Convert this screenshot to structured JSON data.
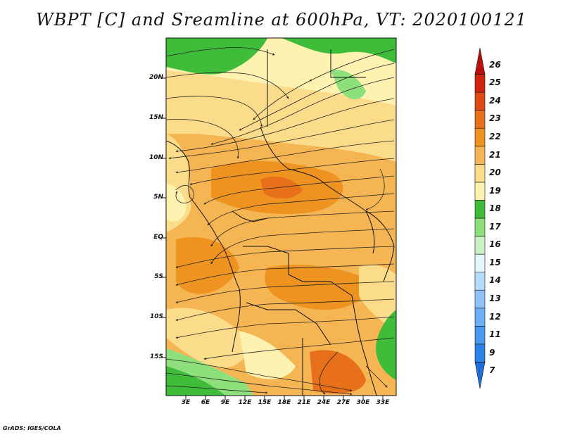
{
  "title": "WBPT [C] and Sreamline at 600hPa, VT: 2020100121",
  "credit": "GrADS: IGES/COLA",
  "lat_labels": [
    "20N",
    "15N",
    "10N",
    "5N",
    "EQ",
    "5S",
    "10S",
    "15S"
  ],
  "lon_labels": [
    "3E",
    "6E",
    "9E",
    "12E",
    "15E",
    "18E",
    "21E",
    "24E",
    "27E",
    "30E",
    "33E"
  ],
  "colorbar": {
    "labels": [
      "7",
      "9",
      "11",
      "12",
      "13",
      "14",
      "15",
      "16",
      "17",
      "18",
      "19",
      "20",
      "21",
      "22",
      "23",
      "24",
      "25",
      "26"
    ],
    "colors": [
      "#1e6fd9",
      "#2b82e8",
      "#4a98f0",
      "#6cb0f5",
      "#8fc4f8",
      "#b4dcfb",
      "#e6f6ff",
      "#c8f2c0",
      "#8ee07c",
      "#3fbc3a",
      "#fdf2b0",
      "#fadc8a",
      "#f5b552",
      "#ef9320",
      "#e8701a",
      "#e04a12",
      "#d0240e",
      "#b8100c"
    ]
  },
  "fields": {
    "green": "#3fbc3a",
    "light_green": "#8ee07c",
    "pale_yellow": "#fdf2b0",
    "yellow": "#fadc8a",
    "light_orange": "#f5b552",
    "orange": "#ef9320",
    "dark_orange": "#e8701a"
  }
}
